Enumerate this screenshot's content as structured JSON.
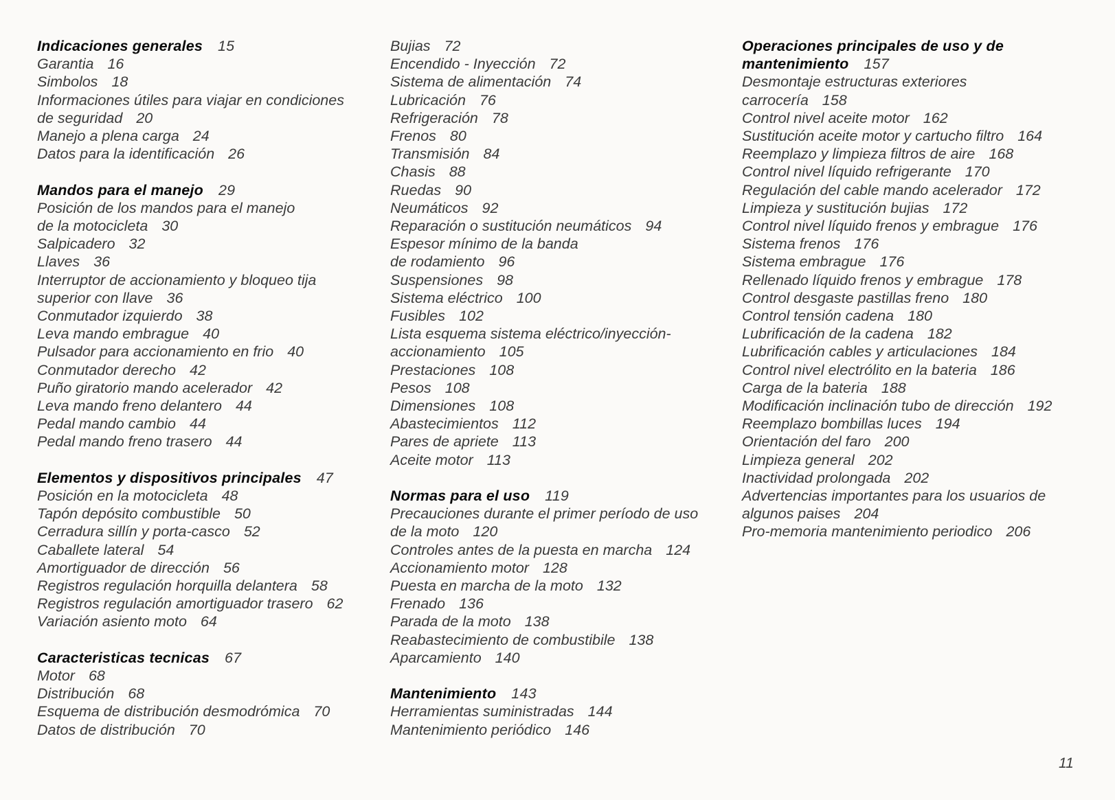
{
  "columns": [
    {
      "blocks": [
        {
          "heading": "Indicaciones generales",
          "page": "15",
          "items": [
            {
              "title": "Garantia",
              "page": "16"
            },
            {
              "title": "Simbolos",
              "page": "18"
            },
            {
              "title": "Informaciones útiles para viajar en condiciones\nde seguridad",
              "page": "20"
            },
            {
              "title": "Manejo a plena carga",
              "page": "24"
            },
            {
              "title": "Datos para la identificación",
              "page": "26"
            }
          ]
        },
        {
          "heading": "Mandos para el manejo",
          "page": "29",
          "items": [
            {
              "title": "Posición de los mandos para el manejo\nde la motocicleta",
              "page": "30"
            },
            {
              "title": "Salpicadero",
              "page": "32"
            },
            {
              "title": "Llaves",
              "page": "36"
            },
            {
              "title": "Interruptor de accionamiento y bloqueo tija\nsuperior con llave",
              "page": "36"
            },
            {
              "title": "Conmutador izquierdo",
              "page": "38"
            },
            {
              "title": "Leva mando embrague",
              "page": "40"
            },
            {
              "title": "Pulsador para accionamiento en frio",
              "page": "40"
            },
            {
              "title": "Conmutador derecho",
              "page": "42"
            },
            {
              "title": "Puño giratorio mando acelerador",
              "page": "42"
            },
            {
              "title": "Leva mando freno delantero",
              "page": "44"
            },
            {
              "title": "Pedal mando cambio",
              "page": "44"
            },
            {
              "title": "Pedal mando freno trasero",
              "page": "44"
            }
          ]
        },
        {
          "heading": "Elementos y dispositivos principales",
          "page": "47",
          "items": [
            {
              "title": "Posición en la motocicleta",
              "page": "48"
            },
            {
              "title": "Tapón depósito combustible",
              "page": "50"
            },
            {
              "title": "Cerradura sillín y porta-casco",
              "page": "52"
            },
            {
              "title": "Caballete lateral",
              "page": "54"
            },
            {
              "title": "Amortiguador de dirección",
              "page": "56"
            },
            {
              "title": "Registros regulación horquilla delantera",
              "page": "58"
            },
            {
              "title": "Registros regulación amortiguador trasero",
              "page": "62"
            },
            {
              "title": "Variación asiento moto",
              "page": "64"
            }
          ]
        },
        {
          "heading": "Caracteristicas tecnicas",
          "page": "67",
          "items": [
            {
              "title": "Motor",
              "page": "68"
            },
            {
              "title": "Distribución",
              "page": "68"
            },
            {
              "title": "Esquema de distribución desmodrómica",
              "page": "70"
            },
            {
              "title": "Datos de distribución",
              "page": "70"
            }
          ]
        }
      ]
    },
    {
      "blocks": [
        {
          "items": [
            {
              "title": "Bujias",
              "page": "72"
            },
            {
              "title": "Encendido - Inyección",
              "page": "72"
            },
            {
              "title": "Sistema de alimentación",
              "page": "74"
            },
            {
              "title": "Lubricación",
              "page": "76"
            },
            {
              "title": "Refrigeración",
              "page": "78"
            },
            {
              "title": "Frenos",
              "page": "80"
            },
            {
              "title": "Transmisión",
              "page": "84"
            },
            {
              "title": "Chasis",
              "page": "88"
            },
            {
              "title": "Ruedas",
              "page": "90"
            },
            {
              "title": "Neumáticos",
              "page": "92"
            },
            {
              "title": "Reparación o sustitución neumáticos",
              "page": "94"
            },
            {
              "title": "Espesor mínimo de la banda\nde rodamiento",
              "page": "96"
            },
            {
              "title": "Suspensiones",
              "page": "98"
            },
            {
              "title": "Sistema eléctrico",
              "page": "100"
            },
            {
              "title": "Fusibles",
              "page": "102"
            },
            {
              "title": "Lista esquema sistema eléctrico/inyección-\naccionamiento",
              "page": "105"
            },
            {
              "title": "Prestaciones",
              "page": "108"
            },
            {
              "title": "Pesos",
              "page": "108"
            },
            {
              "title": "Dimensiones",
              "page": "108"
            },
            {
              "title": "Abastecimientos",
              "page": "112"
            },
            {
              "title": "Pares de apriete",
              "page": "113"
            },
            {
              "title": "Aceite motor",
              "page": "113"
            }
          ]
        },
        {
          "heading": "Normas para el uso",
          "page": "119",
          "items": [
            {
              "title": "Precauciones durante el primer período de uso\nde la moto",
              "page": "120"
            },
            {
              "title": "Controles antes de la puesta en marcha",
              "page": "124"
            },
            {
              "title": "Accionamiento motor",
              "page": "128"
            },
            {
              "title": "Puesta en marcha de la moto",
              "page": "132"
            },
            {
              "title": "Frenado",
              "page": "136"
            },
            {
              "title": "Parada de la moto",
              "page": "138"
            },
            {
              "title": "Reabastecimiento de combustibile",
              "page": "138"
            },
            {
              "title": "Aparcamiento",
              "page": "140"
            }
          ]
        },
        {
          "heading": "Mantenimiento",
          "page": "143",
          "items": [
            {
              "title": "Herramientas suministradas",
              "page": "144"
            },
            {
              "title": "Mantenimiento periódico",
              "page": "146"
            }
          ]
        }
      ]
    },
    {
      "blocks": [
        {
          "heading": "Operaciones principales de uso y de\nmantenimiento",
          "page": "157",
          "items": [
            {
              "title": "Desmontaje estructuras exteriores\ncarrocería",
              "page": "158"
            },
            {
              "title": "Control nivel aceite motor",
              "page": "162"
            },
            {
              "title": "Sustitución aceite motor y cartucho filtro",
              "page": "164"
            },
            {
              "title": "Reemplazo y limpieza filtros de aire",
              "page": "168"
            },
            {
              "title": "Control nivel líquido refrigerante",
              "page": "170"
            },
            {
              "title": "Regulación del cable mando acelerador",
              "page": "172"
            },
            {
              "title": "Limpieza y sustitución bujias",
              "page": "172"
            },
            {
              "title": "Control nivel líquido frenos y embrague",
              "page": "176"
            },
            {
              "title": "Sistema frenos",
              "page": "176"
            },
            {
              "title": "Sistema embrague",
              "page": "176"
            },
            {
              "title": "Rellenado líquido frenos y embrague",
              "page": "178"
            },
            {
              "title": "Control desgaste pastillas freno",
              "page": "180"
            },
            {
              "title": "Control tensión cadena",
              "page": "180"
            },
            {
              "title": "Lubrificación de la cadena",
              "page": "182"
            },
            {
              "title": "Lubrificación cables y articulaciones",
              "page": "184"
            },
            {
              "title": "Control nivel electrólito en la bateria",
              "page": "186"
            },
            {
              "title": "Carga de la bateria",
              "page": "188"
            },
            {
              "title": "Modificación inclinación tubo de dirección",
              "page": "192"
            },
            {
              "title": "Reemplazo bombillas luces",
              "page": "194"
            },
            {
              "title": "Orientación del faro",
              "page": "200"
            },
            {
              "title": "Limpieza general",
              "page": "202"
            },
            {
              "title": "Inactividad prolongada",
              "page": "202"
            },
            {
              "title": "Advertencias importantes para los usuarios de\nalgunos paises",
              "page": "204"
            },
            {
              "title": "Pro-memoria mantenimiento periodico",
              "page": "206"
            }
          ]
        }
      ]
    }
  ],
  "page_number": "11"
}
